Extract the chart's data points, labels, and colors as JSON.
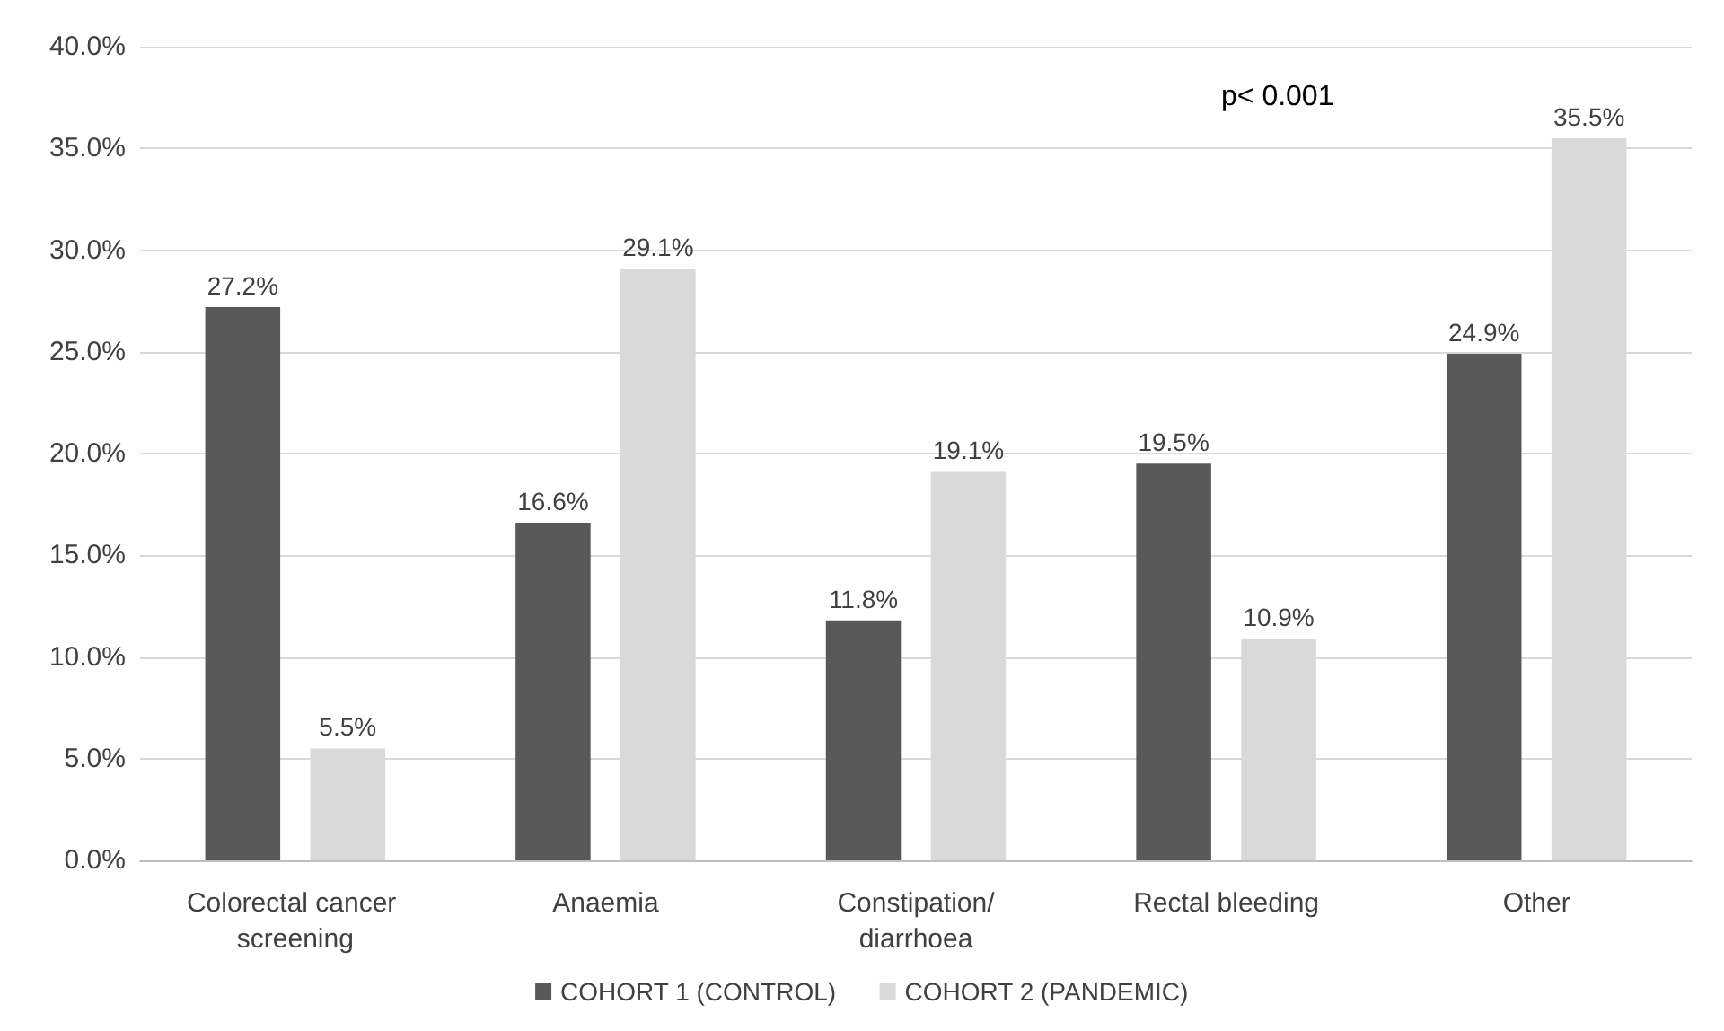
{
  "chart_data": {
    "type": "bar",
    "categories": [
      "Colorectal cancer screening",
      "Anaemia",
      "Constipation/diarrhoea",
      "Rectal bleeding",
      "Other"
    ],
    "series": [
      {
        "name": "COHORT 1 (CONTROL)",
        "color": "#595959",
        "values": [
          27.2,
          16.6,
          11.8,
          19.5,
          24.9
        ],
        "value_labels": [
          "27.2%",
          "16.6%",
          "11.8%",
          "19.5%",
          "24.9%"
        ]
      },
      {
        "name": "COHORT 2 (PANDEMIC)",
        "color": "#d9d9d9",
        "values": [
          5.5,
          29.1,
          19.1,
          10.9,
          35.5
        ],
        "value_labels": [
          "5.5%",
          "29.1%",
          "19.1%",
          "10.9%",
          "35.5%"
        ]
      }
    ],
    "ylim": [
      0,
      40
    ],
    "yticks": [
      {
        "value": 0,
        "label": "0.0%"
      },
      {
        "value": 5,
        "label": "5.0%"
      },
      {
        "value": 10,
        "label": "10.0%"
      },
      {
        "value": 15,
        "label": "15.0%"
      },
      {
        "value": 20,
        "label": "20.0%"
      },
      {
        "value": 25,
        "label": "25.0%"
      },
      {
        "value": 30,
        "label": "30.0%"
      },
      {
        "value": 35,
        "label": "35.0%"
      },
      {
        "value": 40,
        "label": "40.0%"
      }
    ],
    "grid": "y",
    "legend": "bottom",
    "annotations": [
      "p< 0.001"
    ]
  }
}
